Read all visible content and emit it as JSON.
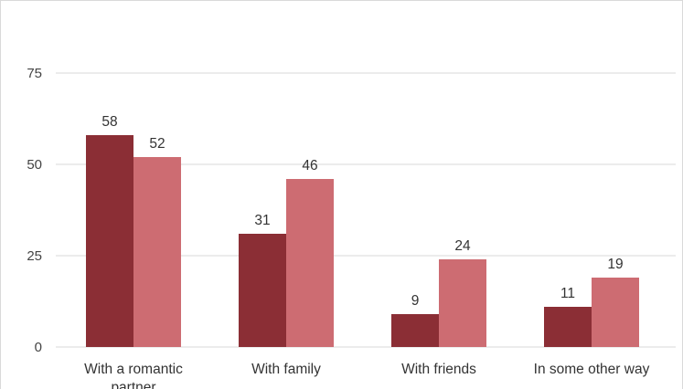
{
  "chart_data": {
    "type": "bar",
    "title": "",
    "xlabel": "",
    "ylabel": "",
    "ylim": [
      0,
      75
    ],
    "yticks": [
      0,
      25,
      50,
      75
    ],
    "grid": true,
    "categories": [
      [
        "With a romantic",
        "partner"
      ],
      [
        "With family"
      ],
      [
        "With friends"
      ],
      [
        "In some other way"
      ]
    ],
    "series": [
      {
        "values": [
          58,
          31,
          9,
          11
        ],
        "color": "#8b2e35"
      },
      {
        "values": [
          52,
          46,
          24,
          19
        ],
        "color": "#cd6c72"
      }
    ]
  }
}
